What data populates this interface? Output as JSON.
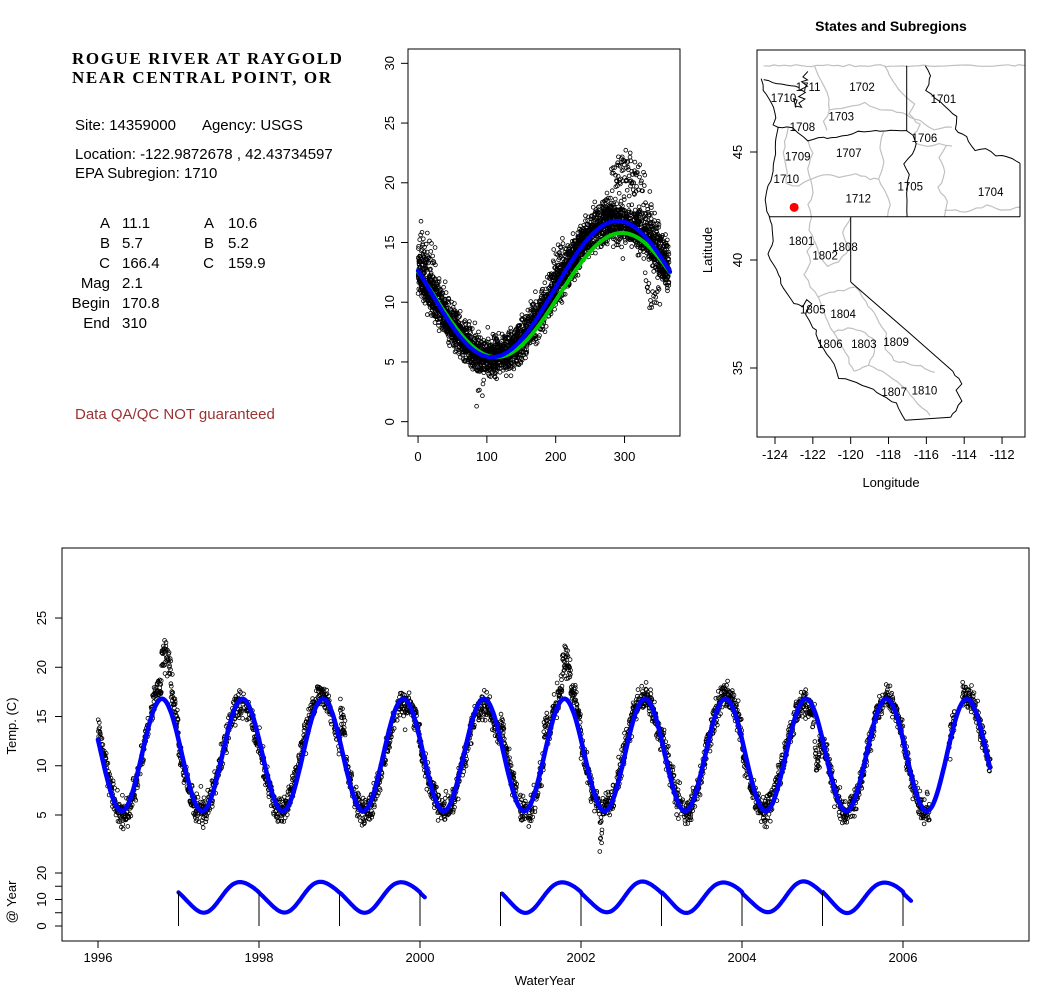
{
  "info_panel": {
    "title_line1": "ROGUE RIVER AT RAYGOLD",
    "title_line2": "NEAR CENTRAL POINT, OR",
    "site_label": "Site:",
    "site_value": "14359000",
    "agency_label": "Agency:",
    "agency_value": "USGS",
    "location_label": "Location:",
    "location_value": "-122.9872678 , 42.43734597",
    "subregion_label": "EPA Subregion:",
    "subregion_value": "1710",
    "params": {
      "rows": [
        [
          "A",
          "11.1",
          "A",
          "10.6"
        ],
        [
          "B",
          "5.7",
          "B",
          "5.2"
        ],
        [
          "C",
          "166.4",
          "C",
          "159.9"
        ],
        [
          "Mag",
          "2.1",
          "",
          ""
        ],
        [
          "Begin",
          "170.8",
          "",
          ""
        ],
        [
          "End",
          "310",
          "",
          ""
        ]
      ]
    },
    "warning": "Data QA/QC NOT guaranteed"
  },
  "colors": {
    "fit_primary": "#0000FF",
    "fit_secondary": "#00CC00",
    "site_marker": "#FF0000",
    "warning_text": "#9B3232",
    "subregion_boundary": "#C0C0C0",
    "state_boundary": "#000000"
  },
  "chart_data": [
    {
      "type": "scatter",
      "title": "",
      "xlabel": "",
      "ylabel": "",
      "xlim": [
        -14.6,
        380.6
      ],
      "ylim": [
        -1.2,
        31.2
      ],
      "xticks": [
        0,
        100,
        200,
        300
      ],
      "yticks": [
        0,
        5,
        10,
        15,
        20,
        25,
        30
      ],
      "grid": false,
      "points_description": "daily water temperature (deg C) vs day of water year, all years 1996-2007 overlaid, open black circles",
      "series": [
        {
          "name": "observations",
          "type": "points",
          "marker": "open-circle",
          "color": "#000000"
        },
        {
          "name": "seasonal-fit-secondary",
          "type": "curve",
          "color": "#00CC00",
          "model": "y = A + B*sin(2*pi*(t+C)/365)",
          "A": 10.6,
          "B": 5.2,
          "C": 159.9
        },
        {
          "name": "seasonal-fit-primary",
          "type": "curve",
          "color": "#0000FF",
          "model": "y = A + B*sin(2*pi*(t+C)/365)",
          "A": 11.1,
          "B": 5.7,
          "C": 166.4
        }
      ]
    },
    {
      "type": "map",
      "title": "States and Subregions",
      "xlabel": "Longitude",
      "ylabel": "Latitude",
      "xlim": [
        -124.95,
        -110.73
      ],
      "ylim": [
        31.8,
        49.72
      ],
      "xticks": [
        -124,
        -122,
        -120,
        -118,
        -116,
        -114,
        -112
      ],
      "yticks": [
        35,
        40,
        45
      ],
      "site": {
        "lon": -122.9872678,
        "lat": 42.43734597
      },
      "region_labels": [
        {
          "text": "1711",
          "lon": -122.25,
          "lat": 48.0
        },
        {
          "text": "1702",
          "lon": -119.4,
          "lat": 48.0
        },
        {
          "text": "1701",
          "lon": -115.1,
          "lat": 47.45
        },
        {
          "text": "1710",
          "lon": -123.55,
          "lat": 47.5
        },
        {
          "text": "1703",
          "lon": -120.5,
          "lat": 46.65
        },
        {
          "text": "1708",
          "lon": -122.55,
          "lat": 46.15
        },
        {
          "text": "1706",
          "lon": -116.1,
          "lat": 45.65
        },
        {
          "text": "1707",
          "lon": -120.1,
          "lat": 44.95
        },
        {
          "text": "1709",
          "lon": -122.8,
          "lat": 44.8
        },
        {
          "text": "1710",
          "lon": -123.4,
          "lat": 43.75
        },
        {
          "text": "1705",
          "lon": -116.85,
          "lat": 43.4
        },
        {
          "text": "1704",
          "lon": -112.6,
          "lat": 43.15
        },
        {
          "text": "1712",
          "lon": -119.6,
          "lat": 42.85
        },
        {
          "text": "1801",
          "lon": -122.6,
          "lat": 40.88
        },
        {
          "text": "1808",
          "lon": -120.3,
          "lat": 40.6
        },
        {
          "text": "1802",
          "lon": -121.35,
          "lat": 40.2
        },
        {
          "text": "1805",
          "lon": -122.0,
          "lat": 37.7
        },
        {
          "text": "1804",
          "lon": -120.4,
          "lat": 37.5
        },
        {
          "text": "1806",
          "lon": -121.1,
          "lat": 36.1
        },
        {
          "text": "1803",
          "lon": -119.3,
          "lat": 36.1
        },
        {
          "text": "1809",
          "lon": -117.6,
          "lat": 36.2
        },
        {
          "text": "1807",
          "lon": -117.7,
          "lat": 33.9
        },
        {
          "text": "1810",
          "lon": -116.1,
          "lat": 33.95
        }
      ]
    },
    {
      "type": "scatter+line",
      "title": "",
      "xlabel": "WaterYear",
      "ylabel": "Temp. (C)",
      "ylabel_sub": "@ Year",
      "xlim": [
        1995.55,
        2007.57
      ],
      "xticks": [
        1996,
        1998,
        2000,
        2002,
        2004,
        2006
      ],
      "yticks_main": [
        5,
        10,
        15,
        20,
        25
      ],
      "yticks_sub_all": [
        0,
        5,
        10,
        15,
        20
      ],
      "yticks_sub_labeled": [
        0,
        10,
        20
      ],
      "points_description": "daily water temperature (deg C) vs water year 1996-2007, open black circles",
      "fit": {
        "model": "y = A + B*sin(2*pi*(t+C)/365)",
        "A": 11.1,
        "B": 5.7,
        "C": 166.4,
        "x_start": 1996.0,
        "x_end": 2007.08
      },
      "sub_panel": {
        "description": "annual fitted seasonal profile repeated per year on 0-20 mini scale with year tick whiskers",
        "segments": [
          {
            "x_start": 1997.0,
            "x_end": 2000.06,
            "year_ticks": [
              1997,
              1998,
              1999,
              2000
            ]
          },
          {
            "x_start": 2001.02,
            "x_end": 2006.1,
            "year_ticks": [
              2001,
              2002,
              2003,
              2004,
              2005,
              2006
            ]
          }
        ]
      }
    }
  ]
}
